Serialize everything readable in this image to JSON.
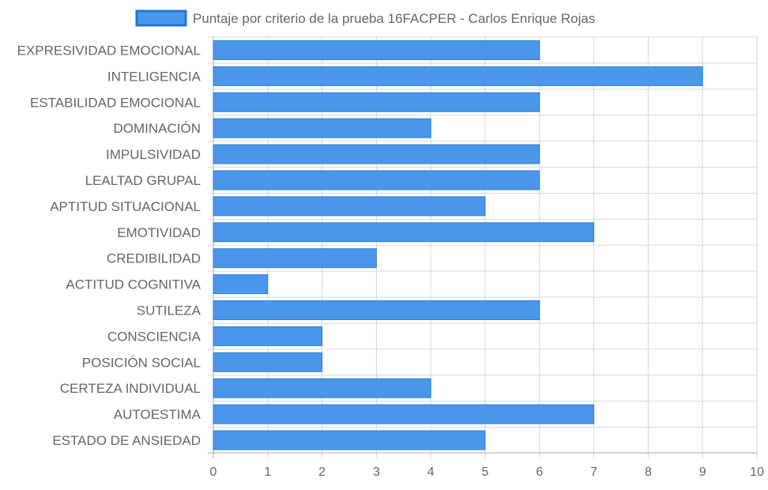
{
  "chart_data": {
    "type": "bar",
    "orientation": "horizontal",
    "legend_position": "top",
    "grid": true,
    "xlim": [
      0,
      10
    ],
    "x_ticks": [
      "0",
      "1",
      "2",
      "3",
      "4",
      "5",
      "6",
      "7",
      "8",
      "9",
      "10"
    ],
    "categories": [
      "EXPRESIVIDAD EMOCIONAL",
      "INTELIGENCIA",
      "ESTABILIDAD EMOCIONAL",
      "DOMINACIÓN",
      "IMPULSIVIDAD",
      "LEALTAD GRUPAL",
      "APTITUD SITUACIONAL",
      "EMOTIVIDAD",
      "CREDIBILIDAD",
      "ACTITUD COGNITIVA",
      "SUTILEZA",
      "CONSCIENCIA",
      "POSICIÓN SOCIAL",
      "CERTEZA INDIVIDUAL",
      "AUTOESTIMA",
      "ESTADO DE ANSIEDAD"
    ],
    "series": [
      {
        "name": "Puntaje por criterio de la prueba 16FACPER - Carlos Enrique Rojas",
        "values": [
          6,
          9,
          6,
          4,
          6,
          6,
          5,
          7,
          3,
          1,
          6,
          2,
          2,
          4,
          7,
          5
        ]
      }
    ],
    "colors": {
      "bar_fill": "#4a97ea",
      "bar_stroke": "#2f7fd7",
      "legend_fill": "#4a97ea",
      "legend_stroke": "#1f78d1",
      "grid": "#d9d9d9",
      "axis": "#aaaaaa",
      "text": "#666666"
    }
  }
}
